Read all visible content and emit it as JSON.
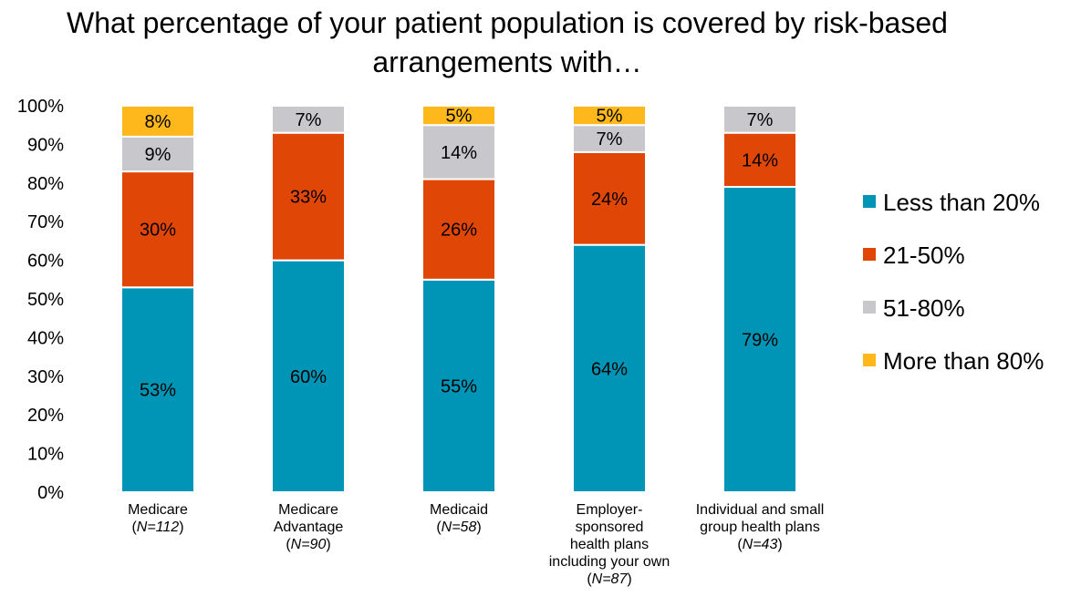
{
  "chart_data": {
    "type": "bar",
    "stacked": true,
    "title_lines": [
      "What percentage of your patient population is covered by risk-based",
      "arrangements with…"
    ],
    "categories": [
      {
        "lines": [
          "Medicare"
        ],
        "n_label": "N=112"
      },
      {
        "lines": [
          "Medicare",
          "Advantage"
        ],
        "n_label": "N=90"
      },
      {
        "lines": [
          "Medicaid"
        ],
        "n_label": "N=58"
      },
      {
        "lines": [
          "Employer-",
          "sponsored",
          "health plans",
          "including your own"
        ],
        "n_label": "N=87"
      },
      {
        "lines": [
          "Individual and small",
          "group health plans"
        ],
        "n_label": "N=43"
      }
    ],
    "series": [
      {
        "name": "Less than 20%",
        "color": "#0095B6",
        "values": [
          53,
          60,
          55,
          64,
          79
        ]
      },
      {
        "name": "21-50%",
        "color": "#E04707",
        "values": [
          30,
          33,
          26,
          24,
          14
        ]
      },
      {
        "name": "51-80%",
        "color": "#C8C8CC",
        "values": [
          9,
          7,
          14,
          7,
          7
        ]
      },
      {
        "name": "More than 80%",
        "color": "#FFB81C",
        "values": [
          8,
          0,
          5,
          5,
          0
        ]
      }
    ],
    "ylim": [
      0,
      100
    ],
    "yticks": [
      "0%",
      "10%",
      "20%",
      "30%",
      "40%",
      "50%",
      "60%",
      "70%",
      "80%",
      "90%",
      "100%"
    ],
    "value_suffix": "%",
    "legend_position": "right",
    "grid": false
  }
}
